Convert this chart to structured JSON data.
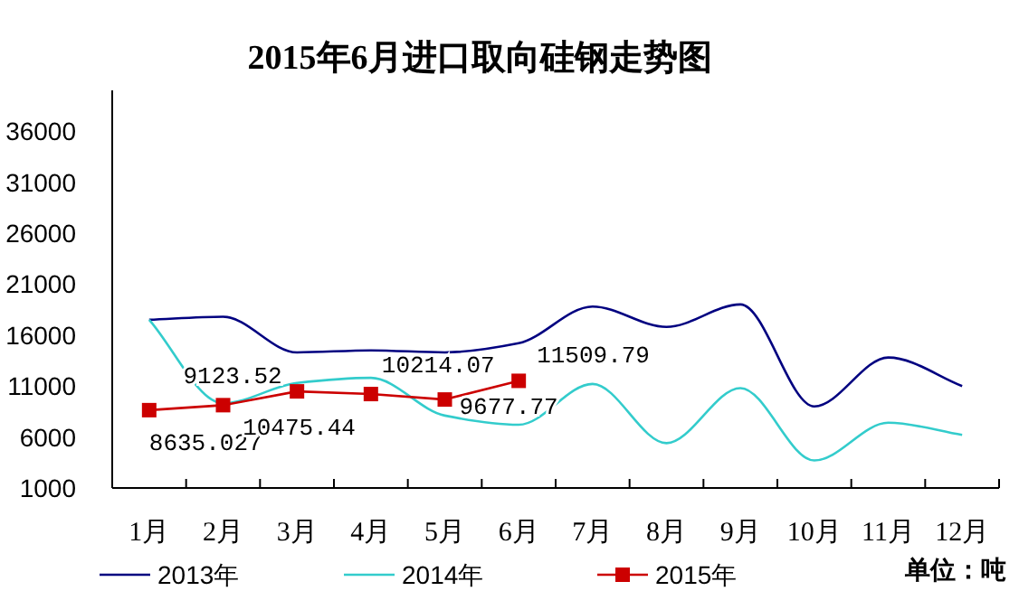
{
  "chart_data": {
    "type": "line",
    "title": "2015年6月进口取向硅钢走势图",
    "categories": [
      "1月",
      "2月",
      "3月",
      "4月",
      "5月",
      "6月",
      "7月",
      "8月",
      "9月",
      "10月",
      "11月",
      "12月"
    ],
    "ylim": [
      1000,
      40000
    ],
    "yticks": [
      1000,
      6000,
      11000,
      16000,
      21000,
      26000,
      31000,
      36000
    ],
    "legend": "bottom",
    "series": [
      {
        "name": "2013年",
        "color": "#000080",
        "marker": "none",
        "values": [
          17500,
          17800,
          14300,
          14500,
          14300,
          15200,
          18800,
          16800,
          19000,
          9000,
          13800,
          11000
        ]
      },
      {
        "name": "2014年",
        "color": "#33cccc",
        "marker": "none",
        "values": [
          17500,
          9300,
          11300,
          11800,
          8100,
          7200,
          11200,
          5400,
          10800,
          3700,
          7400,
          6200
        ]
      },
      {
        "name": "2015年",
        "color": "#cc0000",
        "marker": "square",
        "values": [
          8635.027,
          9123.52,
          10475.44,
          10214.07,
          9677.77,
          11509.79,
          null,
          null,
          null,
          null,
          null,
          null
        ],
        "value_labels": [
          "8635.027",
          "9123.52",
          "10475.44",
          "10214.07",
          "9677.77",
          "11509.79",
          null,
          null,
          null,
          null,
          null,
          null
        ]
      }
    ],
    "annotations": [
      "单位：吨"
    ]
  }
}
